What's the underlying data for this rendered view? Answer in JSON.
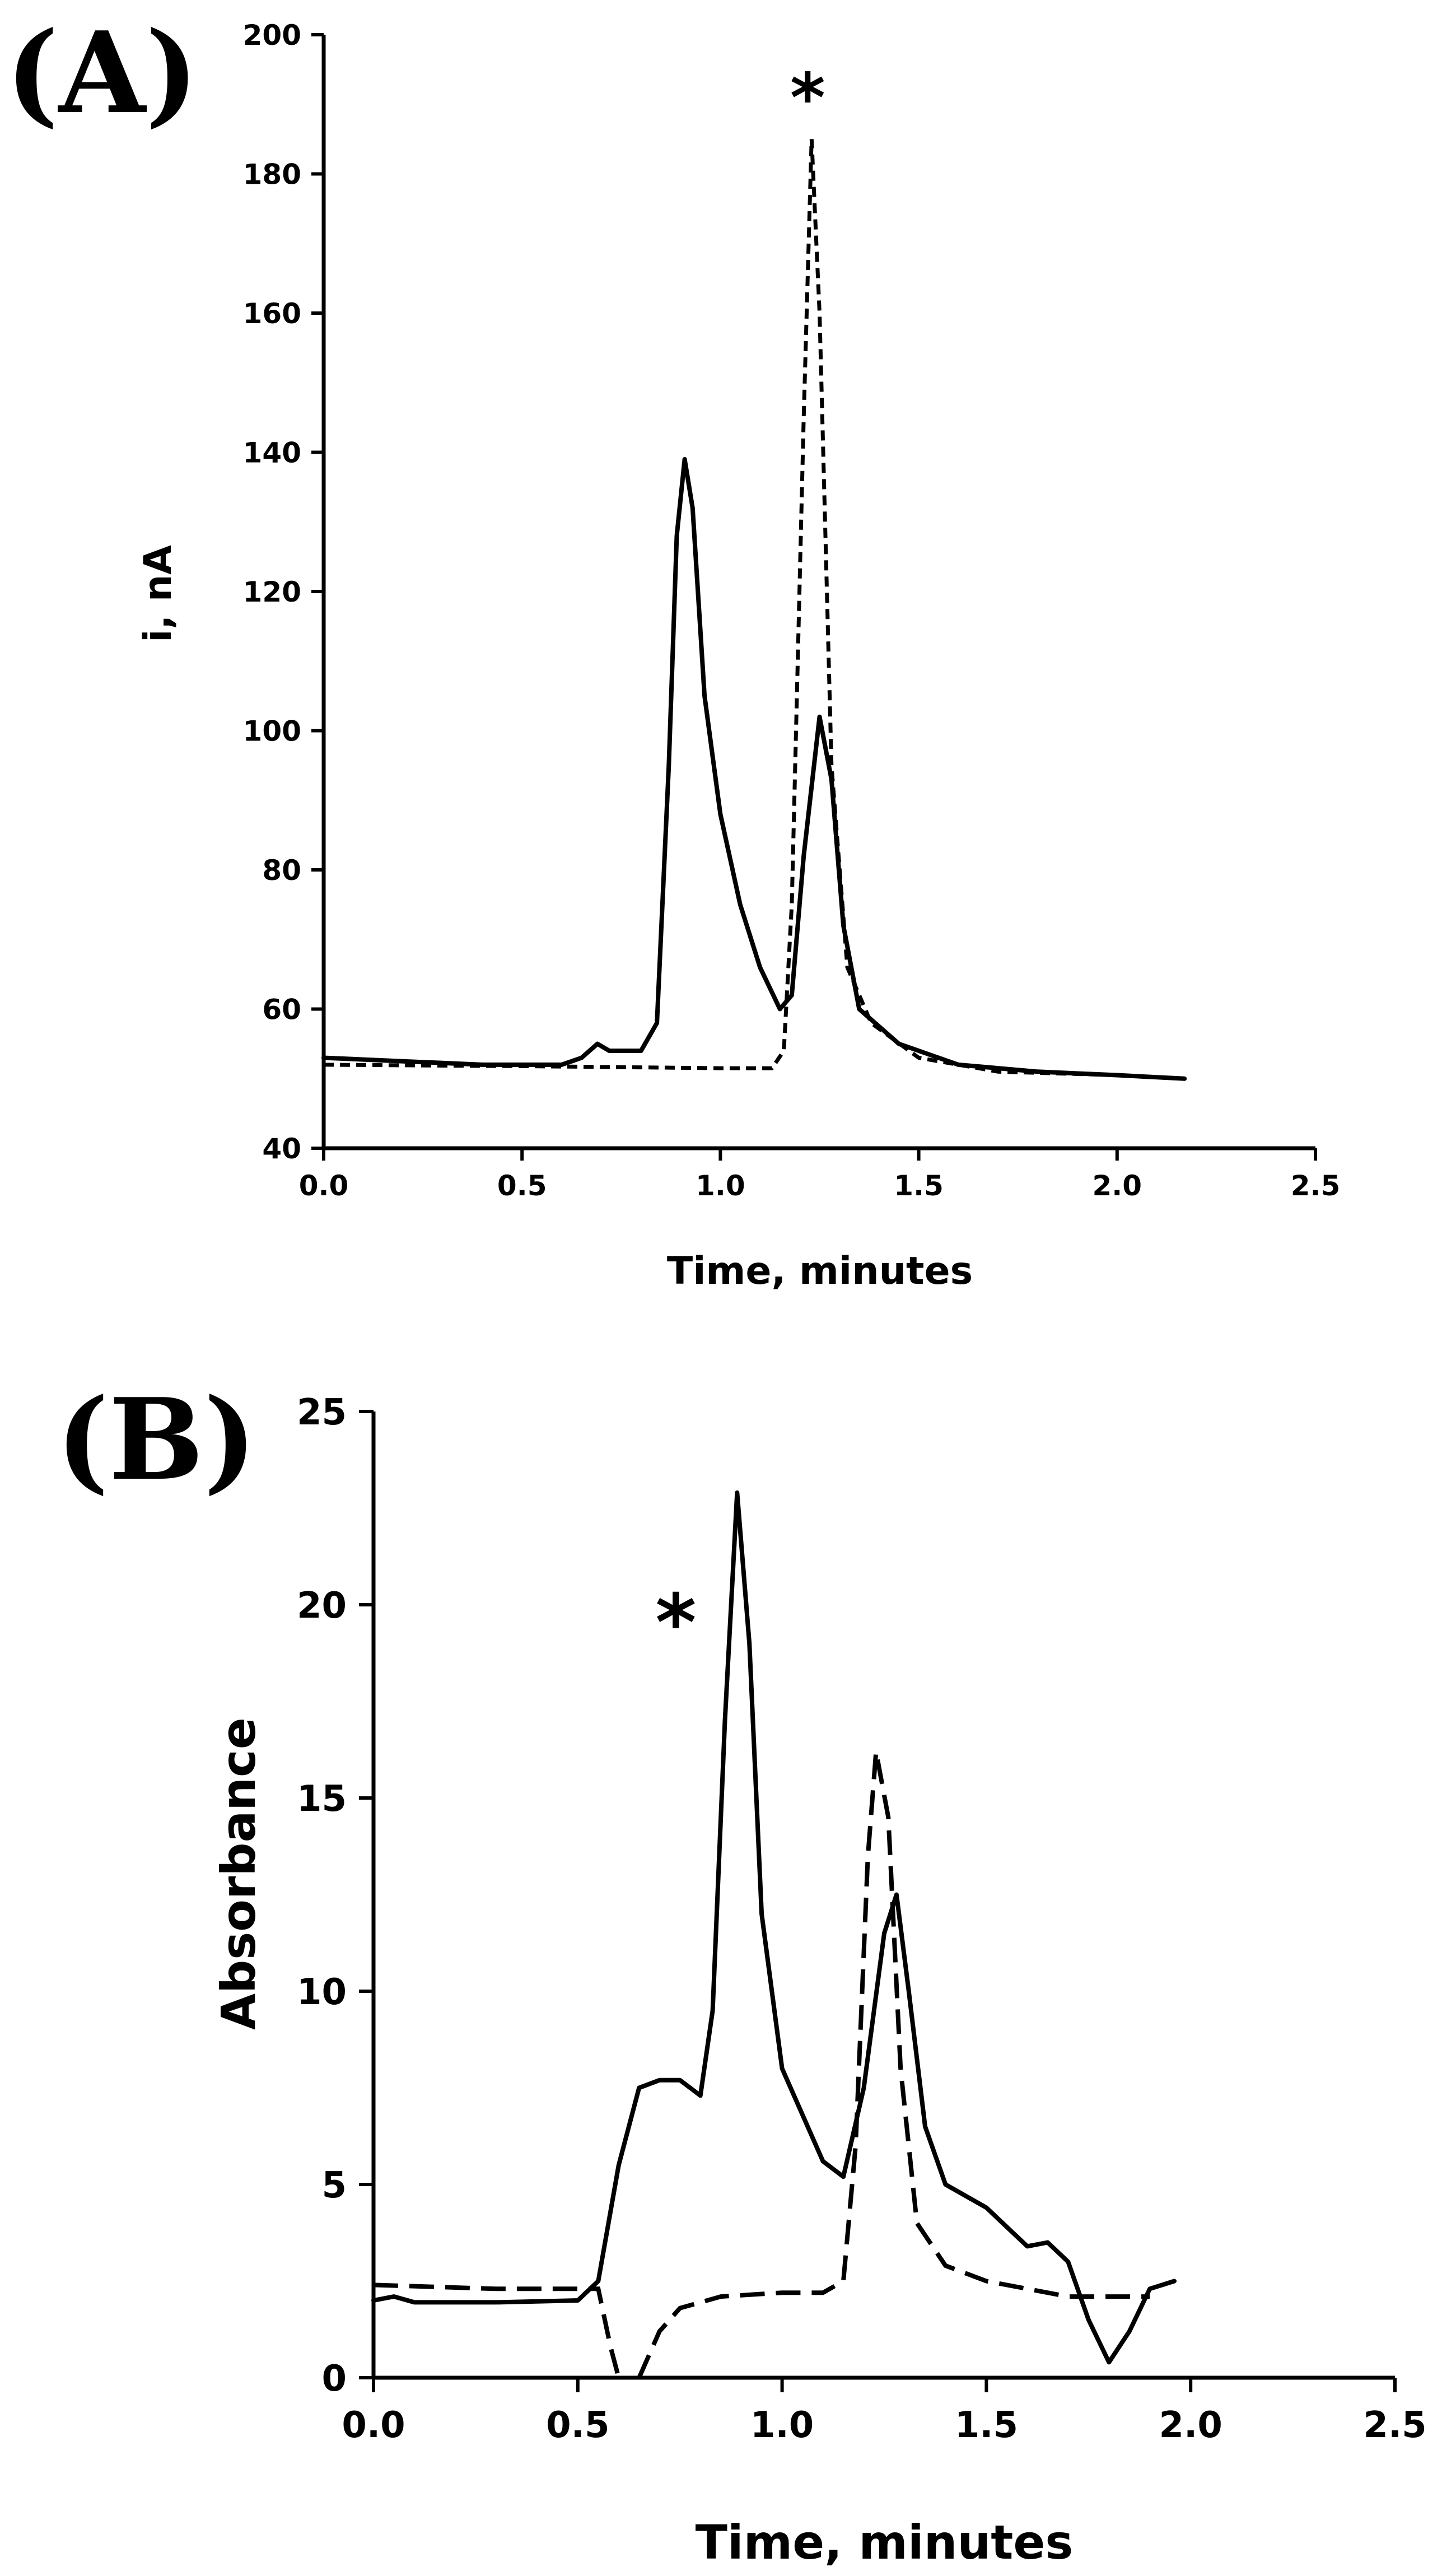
{
  "chart_data": [
    {
      "type": "line",
      "panel_label": "(A)",
      "title": "",
      "xlabel": "Time, minutes",
      "ylabel": "i, nA",
      "xlim": [
        0.0,
        2.5
      ],
      "ylim": [
        40,
        200
      ],
      "x_ticks": [
        "0.0",
        "0.5",
        "1.0",
        "1.5",
        "2.0",
        "2.5"
      ],
      "y_ticks": [
        "40",
        "60",
        "80",
        "100",
        "120",
        "140",
        "160",
        "180",
        "200"
      ],
      "annotation": {
        "text": "*",
        "x": 1.22,
        "y": 190
      },
      "series": [
        {
          "name": "solid",
          "style": "solid",
          "points": [
            [
              0.0,
              53.0
            ],
            [
              0.2,
              52.5
            ],
            [
              0.4,
              52.0
            ],
            [
              0.6,
              52.0
            ],
            [
              0.65,
              53.0
            ],
            [
              0.69,
              55.0
            ],
            [
              0.72,
              54.0
            ],
            [
              0.8,
              54.0
            ],
            [
              0.84,
              58.0
            ],
            [
              0.87,
              95.0
            ],
            [
              0.89,
              128.0
            ],
            [
              0.91,
              139.0
            ],
            [
              0.93,
              132.0
            ],
            [
              0.96,
              105.0
            ],
            [
              1.0,
              88.0
            ],
            [
              1.05,
              75.0
            ],
            [
              1.1,
              66.0
            ],
            [
              1.15,
              60.0
            ],
            [
              1.18,
              62.0
            ],
            [
              1.21,
              82.0
            ],
            [
              1.25,
              102.0
            ],
            [
              1.28,
              93.0
            ],
            [
              1.31,
              72.0
            ],
            [
              1.35,
              60.0
            ],
            [
              1.45,
              55.0
            ],
            [
              1.6,
              52.0
            ],
            [
              1.8,
              51.0
            ],
            [
              2.0,
              50.5
            ],
            [
              2.17,
              50.0
            ]
          ]
        },
        {
          "name": "dashed",
          "style": "dashed",
          "points": [
            [
              0.0,
              52.0
            ],
            [
              0.5,
              51.8
            ],
            [
              1.0,
              51.5
            ],
            [
              1.13,
              51.5
            ],
            [
              1.16,
              54.0
            ],
            [
              1.18,
              75.0
            ],
            [
              1.21,
              145.0
            ],
            [
              1.23,
              185.0
            ],
            [
              1.25,
              160.0
            ],
            [
              1.28,
              95.0
            ],
            [
              1.32,
              66.0
            ],
            [
              1.38,
              58.0
            ],
            [
              1.5,
              53.0
            ],
            [
              1.7,
              51.0
            ],
            [
              2.0,
              50.5
            ],
            [
              2.17,
              50.0
            ]
          ]
        }
      ]
    },
    {
      "type": "line",
      "panel_label": "(B)",
      "title": "",
      "xlabel": "Time, minutes",
      "ylabel": "Absorbance",
      "xlim": [
        0.0,
        2.5
      ],
      "ylim": [
        0,
        25
      ],
      "x_ticks": [
        "0.0",
        "0.5",
        "1.0",
        "1.5",
        "2.0",
        "2.5"
      ],
      "y_ticks": [
        "0",
        "5",
        "10",
        "15",
        "20",
        "25"
      ],
      "annotation": {
        "text": "*",
        "x": 0.74,
        "y": 19.7
      },
      "series": [
        {
          "name": "solid",
          "style": "solid",
          "points": [
            [
              0.0,
              2.0
            ],
            [
              0.05,
              2.1
            ],
            [
              0.1,
              1.95
            ],
            [
              0.3,
              1.95
            ],
            [
              0.5,
              2.0
            ],
            [
              0.55,
              2.5
            ],
            [
              0.6,
              5.5
            ],
            [
              0.65,
              7.5
            ],
            [
              0.7,
              7.7
            ],
            [
              0.75,
              7.7
            ],
            [
              0.8,
              7.3
            ],
            [
              0.83,
              9.5
            ],
            [
              0.86,
              17.0
            ],
            [
              0.89,
              22.9
            ],
            [
              0.92,
              19.0
            ],
            [
              0.95,
              12.0
            ],
            [
              1.0,
              8.0
            ],
            [
              1.05,
              6.8
            ],
            [
              1.1,
              5.6
            ],
            [
              1.15,
              5.2
            ],
            [
              1.2,
              7.5
            ],
            [
              1.25,
              11.5
            ],
            [
              1.28,
              12.5
            ],
            [
              1.31,
              10.0
            ],
            [
              1.35,
              6.5
            ],
            [
              1.4,
              5.0
            ],
            [
              1.5,
              4.4
            ],
            [
              1.6,
              3.4
            ],
            [
              1.65,
              3.5
            ],
            [
              1.7,
              3.0
            ],
            [
              1.75,
              1.5
            ],
            [
              1.8,
              0.4
            ],
            [
              1.85,
              1.2
            ],
            [
              1.9,
              2.3
            ],
            [
              1.96,
              2.5
            ]
          ]
        },
        {
          "name": "dashed",
          "style": "dashed",
          "points": [
            [
              0.0,
              2.4
            ],
            [
              0.3,
              2.3
            ],
            [
              0.55,
              2.3
            ],
            [
              0.58,
              0.8
            ],
            [
              0.6,
              0.0
            ]
          ]
        },
        {
          "name": "dashed-continued",
          "style": "dashed",
          "points": [
            [
              0.65,
              0.0
            ],
            [
              0.7,
              1.2
            ],
            [
              0.75,
              1.8
            ],
            [
              0.85,
              2.1
            ],
            [
              1.0,
              2.2
            ],
            [
              1.1,
              2.2
            ],
            [
              1.15,
              2.5
            ],
            [
              1.18,
              6.0
            ],
            [
              1.21,
              13.5
            ],
            [
              1.23,
              16.2
            ],
            [
              1.26,
              14.5
            ],
            [
              1.29,
              8.0
            ],
            [
              1.33,
              4.0
            ],
            [
              1.4,
              2.9
            ],
            [
              1.5,
              2.5
            ],
            [
              1.7,
              2.1
            ],
            [
              1.9,
              2.1
            ]
          ]
        }
      ]
    }
  ]
}
